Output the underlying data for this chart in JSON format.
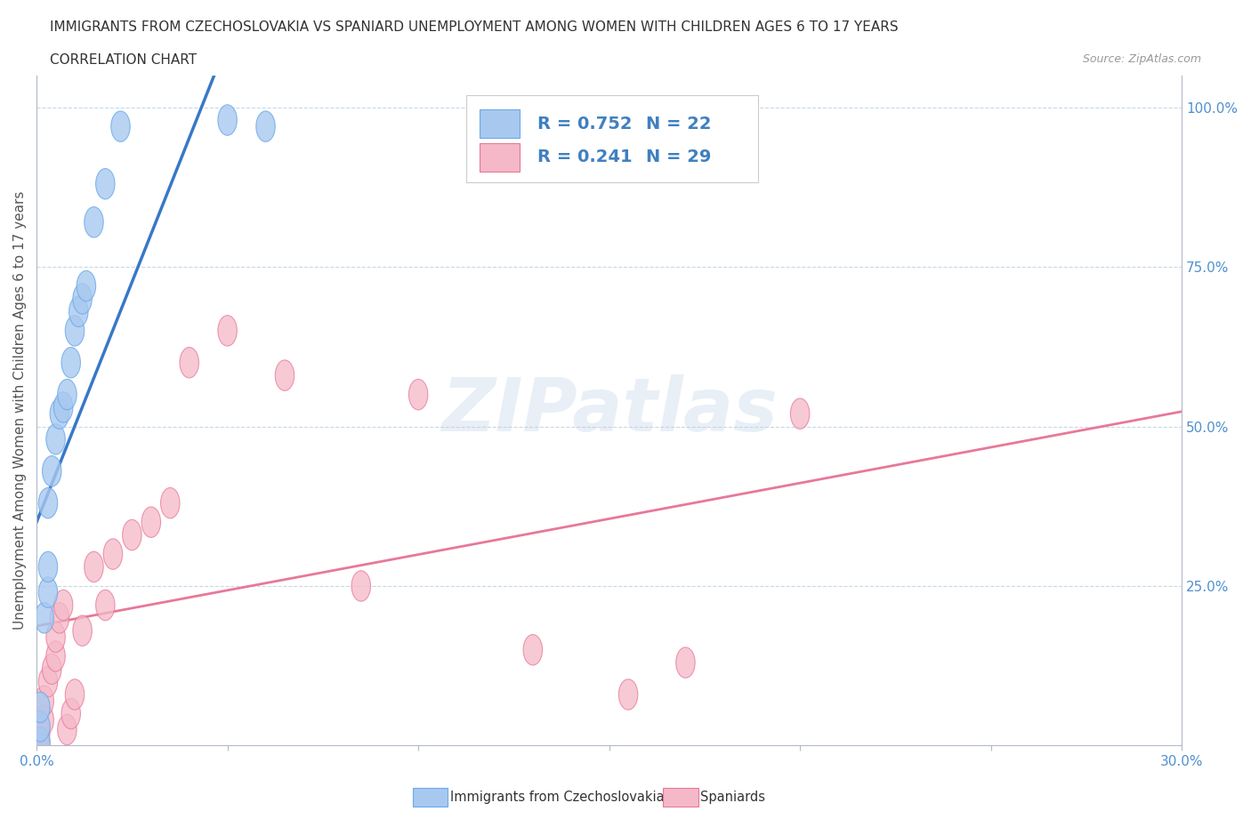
{
  "title": "IMMIGRANTS FROM CZECHOSLOVAKIA VS SPANIARD UNEMPLOYMENT AMONG WOMEN WITH CHILDREN AGES 6 TO 17 YEARS",
  "subtitle": "CORRELATION CHART",
  "source": "Source: ZipAtlas.com",
  "ylabel": "Unemployment Among Women with Children Ages 6 to 17 years",
  "xlim": [
    0.0,
    0.3
  ],
  "ylim": [
    0.0,
    1.05
  ],
  "x_ticks": [
    0.0,
    0.05,
    0.1,
    0.15,
    0.2,
    0.25,
    0.3
  ],
  "x_tick_labels": [
    "0.0%",
    "",
    "",
    "",
    "",
    "",
    "30.0%"
  ],
  "y_ticks": [
    0.0,
    0.25,
    0.5,
    0.75,
    1.0
  ],
  "y_tick_labels": [
    "",
    "25.0%",
    "50.0%",
    "75.0%",
    "100.0%"
  ],
  "czech_color": "#a8c8f0",
  "czech_edge_color": "#6aaae8",
  "spanish_color": "#f5b8c8",
  "spanish_edge_color": "#e87898",
  "czech_line_color": "#3878c8",
  "spanish_line_color": "#e87898",
  "grid_color": "#c8d8e8",
  "watermark": "ZIPatlas",
  "legend_R1": "R = 0.752",
  "legend_N1": "N = 22",
  "legend_R2": "R = 0.241",
  "legend_N2": "N = 29",
  "background_color": "#ffffff",
  "czech_points_x": [
    0.001,
    0.001,
    0.001,
    0.002,
    0.003,
    0.003,
    0.003,
    0.004,
    0.005,
    0.006,
    0.007,
    0.008,
    0.009,
    0.01,
    0.011,
    0.012,
    0.013,
    0.015,
    0.018,
    0.022,
    0.05,
    0.06
  ],
  "czech_points_y": [
    0.005,
    0.03,
    0.06,
    0.2,
    0.24,
    0.28,
    0.38,
    0.43,
    0.48,
    0.52,
    0.53,
    0.55,
    0.6,
    0.65,
    0.68,
    0.7,
    0.72,
    0.82,
    0.88,
    0.97,
    0.98,
    0.97
  ],
  "spanish_points_x": [
    0.001,
    0.001,
    0.002,
    0.002,
    0.003,
    0.004,
    0.005,
    0.005,
    0.006,
    0.007,
    0.008,
    0.009,
    0.01,
    0.012,
    0.015,
    0.018,
    0.02,
    0.025,
    0.03,
    0.035,
    0.04,
    0.05,
    0.065,
    0.085,
    0.1,
    0.13,
    0.155,
    0.17,
    0.2
  ],
  "spanish_points_y": [
    0.005,
    0.02,
    0.04,
    0.07,
    0.1,
    0.12,
    0.14,
    0.17,
    0.2,
    0.22,
    0.025,
    0.05,
    0.08,
    0.18,
    0.28,
    0.22,
    0.3,
    0.33,
    0.35,
    0.38,
    0.6,
    0.65,
    0.58,
    0.25,
    0.55,
    0.15,
    0.08,
    0.13,
    0.52
  ]
}
